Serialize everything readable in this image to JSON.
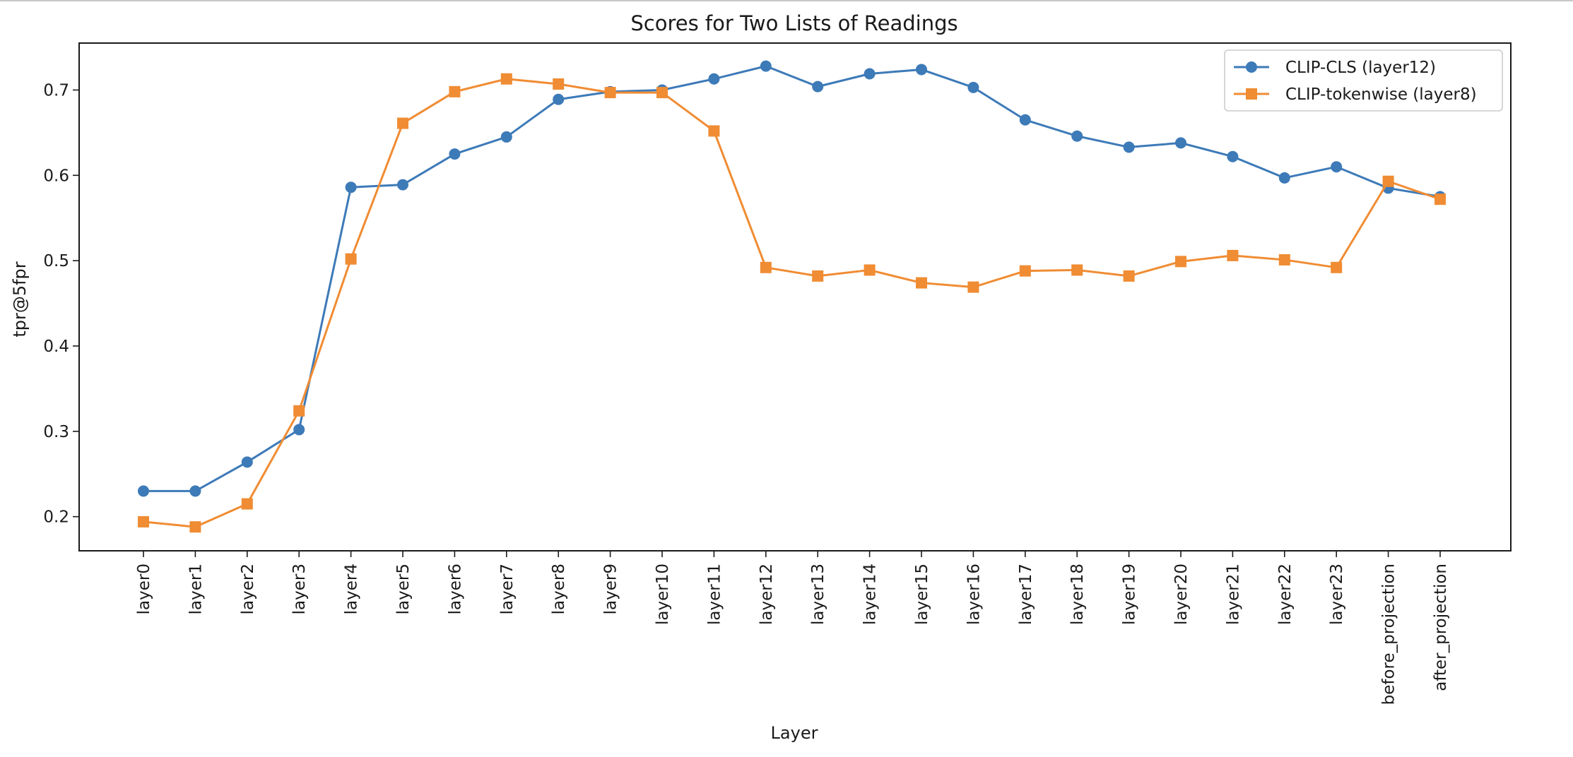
{
  "chart_data": {
    "type": "line",
    "title": "Scores for Two Lists of Readings",
    "xlabel": "Layer",
    "ylabel": "tpr@5fpr",
    "categories": [
      "layer0",
      "layer1",
      "layer2",
      "layer3",
      "layer4",
      "layer5",
      "layer6",
      "layer7",
      "layer8",
      "layer9",
      "layer10",
      "layer11",
      "layer12",
      "layer13",
      "layer14",
      "layer15",
      "layer16",
      "layer17",
      "layer18",
      "layer19",
      "layer20",
      "layer21",
      "layer22",
      "layer23",
      "before_projection",
      "after_projection"
    ],
    "ylim": [
      0.16,
      0.755
    ],
    "yticks": [
      "0.2",
      "0.3",
      "0.4",
      "0.5",
      "0.6",
      "0.7"
    ],
    "grid": false,
    "legend_position": "top-right",
    "series": [
      {
        "name": "CLIP-CLS (layer12)",
        "color": "#3d7ab8",
        "marker": "circle",
        "values": [
          0.23,
          0.23,
          0.264,
          0.302,
          0.586,
          0.589,
          0.625,
          0.645,
          0.689,
          0.698,
          0.7,
          0.713,
          0.728,
          0.704,
          0.719,
          0.724,
          0.703,
          0.665,
          0.646,
          0.633,
          0.638,
          0.622,
          0.597,
          0.61,
          0.585,
          0.575
        ]
      },
      {
        "name": "CLIP-tokenwise (layer8)",
        "color": "#f08c33",
        "marker": "square",
        "values": [
          0.194,
          0.188,
          0.215,
          0.324,
          0.502,
          0.661,
          0.698,
          0.713,
          0.707,
          0.697,
          0.697,
          0.652,
          0.492,
          0.482,
          0.489,
          0.474,
          0.469,
          0.488,
          0.489,
          0.482,
          0.499,
          0.506,
          0.501,
          0.492,
          0.593,
          0.572
        ]
      }
    ]
  }
}
